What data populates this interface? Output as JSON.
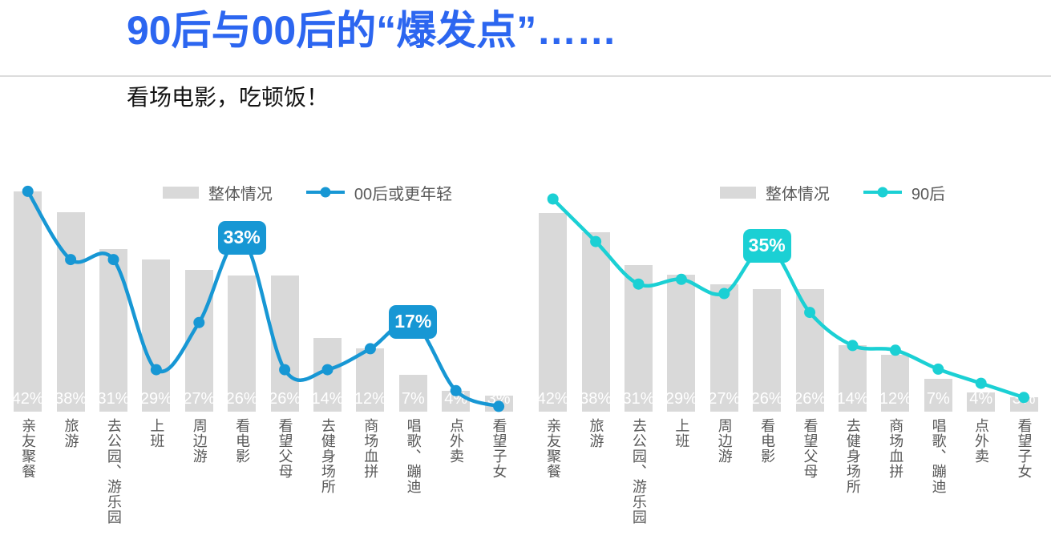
{
  "page": {
    "title": "90后与00后的“爆发点”……",
    "subtitle": "看场电影，吃顿饭！",
    "title_color": "#2c66f0",
    "background_color": "#ffffff"
  },
  "colors": {
    "bar_fill": "#d9d9d9",
    "axis_text": "#595959",
    "bar_label_text": "#ffffff",
    "left_line": "#1797d4",
    "right_line": "#1bd0d4"
  },
  "chart_data": [
    {
      "type": "bar+line",
      "title": "",
      "categories": [
        "亲友聚餐",
        "旅游",
        "去公园、游乐园",
        "上班",
        "周边游",
        "看电影",
        "看望父母",
        "去健身场所",
        "商场血拼",
        "唱歌、蹦迪",
        "点外卖",
        "看望子女"
      ],
      "series": [
        {
          "name": "整体情况",
          "type": "bar",
          "color": "#d9d9d9",
          "values": [
            42,
            38,
            31,
            29,
            27,
            26,
            26,
            14,
            12,
            7,
            4,
            3
          ],
          "data_labels": [
            "42%",
            "38%",
            "31%",
            "29%",
            "27%",
            "26%",
            "26%",
            "14%",
            "12%",
            "7%",
            "4%",
            "3%"
          ]
        },
        {
          "name": "00后或更年轻",
          "type": "line",
          "color": "#1797d4",
          "values": [
            42,
            29,
            29,
            8,
            17,
            33,
            8,
            8,
            12,
            17,
            4,
            1
          ]
        }
      ],
      "callouts": [
        {
          "category_index": 5,
          "label": "33%",
          "value": 33
        },
        {
          "category_index": 9,
          "label": "17%",
          "value": 17
        }
      ],
      "legend_position": "top",
      "ylim": [
        0,
        45
      ],
      "grid": false
    },
    {
      "type": "bar+line",
      "title": "",
      "categories": [
        "亲友聚餐",
        "旅游",
        "去公园、游乐园",
        "上班",
        "周边游",
        "看电影",
        "看望父母",
        "去健身场所",
        "商场血拼",
        "唱歌、蹦迪",
        "点外卖",
        "看望子女"
      ],
      "series": [
        {
          "name": "整体情况",
          "type": "bar",
          "color": "#d9d9d9",
          "values": [
            42,
            38,
            31,
            29,
            27,
            26,
            26,
            14,
            12,
            7,
            4,
            3
          ],
          "data_labels": [
            "42%",
            "38%",
            "31%",
            "29%",
            "27%",
            "26%",
            "26%",
            "14%",
            "12%",
            "7%",
            "4%",
            "3%"
          ]
        },
        {
          "name": "90后",
          "type": "line",
          "color": "#1bd0d4",
          "values": [
            45,
            36,
            27,
            28,
            25,
            35,
            21,
            14,
            13,
            9,
            6,
            3
          ]
        }
      ],
      "callouts": [
        {
          "category_index": 5,
          "label": "35%",
          "value": 35
        }
      ],
      "legend_position": "top",
      "ylim": [
        0,
        45
      ],
      "grid": false
    }
  ]
}
